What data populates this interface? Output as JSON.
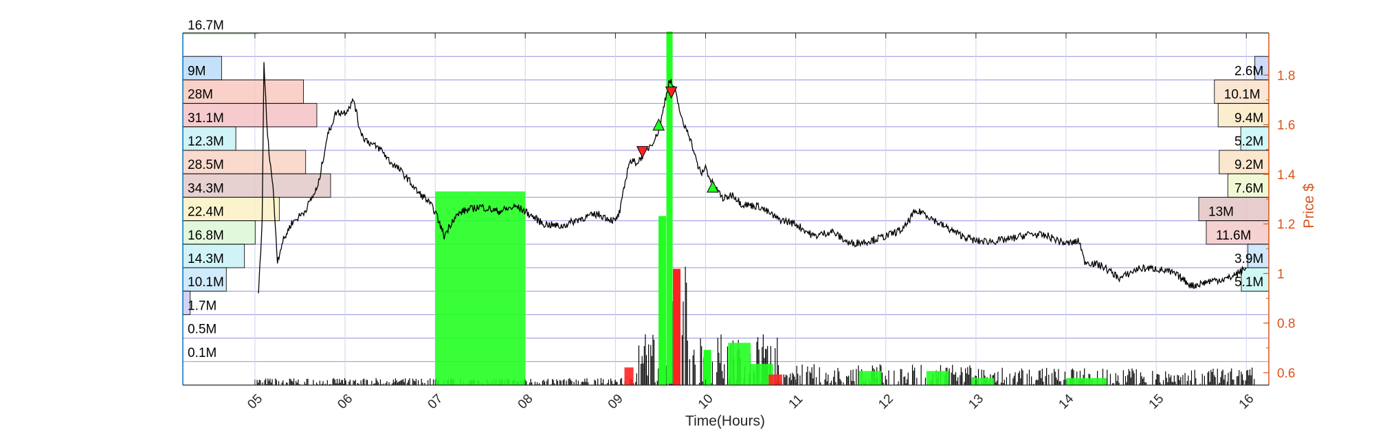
{
  "chart_data": {
    "type": "line",
    "title": "",
    "xlabel": "Time(Hours)",
    "ylabel": "Price $",
    "x_range_hours": [
      4.2,
      16.25
    ],
    "ylim": [
      0.55,
      1.97
    ],
    "x_ticks": [
      "05",
      "06",
      "07",
      "08",
      "09",
      "10",
      "11",
      "12",
      "13",
      "14",
      "15",
      "16"
    ],
    "y_ticks": [
      0.6,
      0.8,
      1,
      1.2,
      1.4,
      1.6,
      1.8
    ],
    "grid": true,
    "colors": {
      "price": "#000000",
      "axis_right": "#d95319",
      "grid": "#6b6bd6",
      "volume_up": "#22ff22",
      "volume_down": "#ff2222"
    },
    "price_series": {
      "name": "",
      "x": [
        5.04,
        5.08,
        5.1,
        5.12,
        5.14,
        5.2,
        5.25,
        5.3,
        5.4,
        5.55,
        5.7,
        5.8,
        5.9,
        6.0,
        6.1,
        6.15,
        6.2,
        6.3,
        6.4,
        6.5,
        6.6,
        6.7,
        6.8,
        6.9,
        7.0,
        7.05,
        7.1,
        7.2,
        7.3,
        7.5,
        7.7,
        7.9,
        8.0,
        8.2,
        8.4,
        8.6,
        8.8,
        9.0,
        9.05,
        9.15,
        9.25,
        9.35,
        9.45,
        9.5,
        9.55,
        9.6,
        9.65,
        9.7,
        9.75,
        9.8,
        9.85,
        9.9,
        9.95,
        10.0,
        10.05,
        10.1,
        10.2,
        10.3,
        10.4,
        10.6,
        10.8,
        11.0,
        11.2,
        11.4,
        11.6,
        11.8,
        12.0,
        12.2,
        12.3,
        12.4,
        12.6,
        12.8,
        13.0,
        13.2,
        13.4,
        13.6,
        13.8,
        14.0,
        14.15,
        14.2,
        14.4,
        14.6,
        14.8,
        15.0,
        15.2,
        15.4,
        15.6,
        15.8,
        15.9,
        16.0
      ],
      "y": [
        0.93,
        1.2,
        1.85,
        1.7,
        1.55,
        1.35,
        1.05,
        1.12,
        1.2,
        1.25,
        1.35,
        1.55,
        1.65,
        1.65,
        1.7,
        1.6,
        1.55,
        1.52,
        1.5,
        1.45,
        1.42,
        1.38,
        1.33,
        1.3,
        1.25,
        1.2,
        1.15,
        1.22,
        1.25,
        1.27,
        1.25,
        1.27,
        1.25,
        1.2,
        1.19,
        1.22,
        1.24,
        1.21,
        1.25,
        1.45,
        1.45,
        1.5,
        1.55,
        1.6,
        1.7,
        1.78,
        1.75,
        1.68,
        1.6,
        1.58,
        1.52,
        1.45,
        1.4,
        1.43,
        1.38,
        1.35,
        1.3,
        1.32,
        1.28,
        1.27,
        1.22,
        1.2,
        1.15,
        1.17,
        1.12,
        1.13,
        1.15,
        1.18,
        1.24,
        1.25,
        1.2,
        1.16,
        1.13,
        1.13,
        1.14,
        1.16,
        1.15,
        1.12,
        1.13,
        1.05,
        1.03,
        0.98,
        1.02,
        1.02,
        1.0,
        0.95,
        0.97,
        0.98,
        1.0,
        1.02
      ]
    },
    "trade_markers": [
      {
        "type": "buy",
        "x": 9.48,
        "y": 1.6
      },
      {
        "type": "buy",
        "x": 10.08,
        "y": 1.35
      },
      {
        "type": "sell",
        "x": 9.3,
        "y": 1.49
      },
      {
        "type": "sell",
        "x": 9.62,
        "y": 1.73
      }
    ],
    "volume_spikes": [
      {
        "x": 9.6,
        "h": 1.0,
        "c": "up"
      },
      {
        "x": 9.68,
        "h": 0.33,
        "c": "down"
      },
      {
        "x": 9.52,
        "h": 0.48,
        "c": "up"
      },
      {
        "x": 10.02,
        "h": 0.1,
        "c": "up"
      }
    ],
    "volume_blocks": [
      {
        "x0": 7.0,
        "x1": 8.0,
        "h": 0.55,
        "c": "up"
      },
      {
        "x0": 10.25,
        "x1": 10.5,
        "h": 0.12,
        "c": "up"
      },
      {
        "x0": 10.5,
        "x1": 10.75,
        "h": 0.06,
        "c": "up"
      },
      {
        "x0": 11.7,
        "x1": 11.95,
        "h": 0.04,
        "c": "up"
      },
      {
        "x0": 12.45,
        "x1": 12.7,
        "h": 0.04,
        "c": "up"
      },
      {
        "x0": 12.95,
        "x1": 13.2,
        "h": 0.02,
        "c": "up"
      },
      {
        "x0": 14.0,
        "x1": 14.45,
        "h": 0.02,
        "c": "up"
      },
      {
        "x0": 9.1,
        "x1": 9.2,
        "h": 0.05,
        "c": "down"
      },
      {
        "x0": 10.7,
        "x1": 10.85,
        "h": 0.03,
        "c": "down"
      }
    ],
    "volume_profile_left": {
      "top_label": "16.7M",
      "levels": [
        {
          "label": "9M",
          "value": 9,
          "color": "#bcdcfa"
        },
        {
          "label": "28M",
          "value": 28,
          "color": "#f8c9bf"
        },
        {
          "label": "31.1M",
          "value": 31.1,
          "color": "#f5c2c6"
        },
        {
          "label": "12.3M",
          "value": 12.3,
          "color": "#c8f2f7"
        },
        {
          "label": "28.5M",
          "value": 28.5,
          "color": "#f8d4c4"
        },
        {
          "label": "34.3M",
          "value": 34.3,
          "color": "#e3c8c8"
        },
        {
          "label": "22.4M",
          "value": 22.4,
          "color": "#fbf1c4"
        },
        {
          "label": "16.8M",
          "value": 16.8,
          "color": "#ddf7d7"
        },
        {
          "label": "14.3M",
          "value": 14.3,
          "color": "#c8f2f7"
        },
        {
          "label": "10.1M",
          "value": 10.1,
          "color": "#c8e8fb"
        },
        {
          "label": "1.7M",
          "value": 1.7,
          "color": "#c9cdf6"
        },
        {
          "label": "0.5M",
          "value": 0.5,
          "color": "#ffffff"
        },
        {
          "label": "0.1M",
          "value": 0.1,
          "color": "#ffffff"
        }
      ]
    },
    "volume_profile_right": {
      "levels": [
        {
          "label": "2.6M",
          "value": 2.6,
          "color": "#c3d5f7"
        },
        {
          "label": "10.1M",
          "value": 10.1,
          "color": "#fbe1cc"
        },
        {
          "label": "9.4M",
          "value": 9.4,
          "color": "#fbecc6"
        },
        {
          "label": "5.2M",
          "value": 5.2,
          "color": "#c8f7f7"
        },
        {
          "label": "9.2M",
          "value": 9.2,
          "color": "#fbe3c6"
        },
        {
          "label": "7.6M",
          "value": 7.6,
          "color": "#eef9cf"
        },
        {
          "label": "13M",
          "value": 13,
          "color": "#e3c5c5"
        },
        {
          "label": "11.6M",
          "value": 11.6,
          "color": "#f5c9cb"
        },
        {
          "label": "3.9M",
          "value": 3.9,
          "color": "#c8e4fb"
        },
        {
          "label": "5.1M",
          "value": 5.1,
          "color": "#c8f7f2"
        }
      ]
    }
  }
}
